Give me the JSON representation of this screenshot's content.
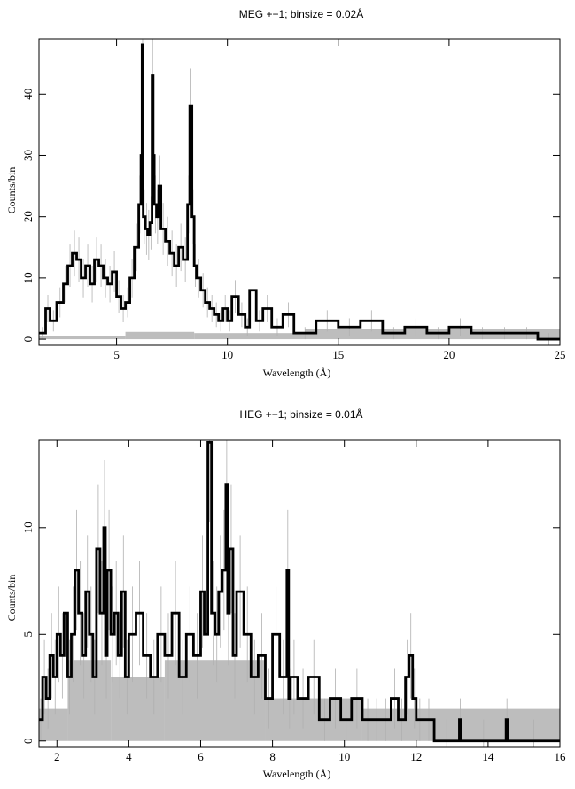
{
  "chart_data": [
    {
      "type": "line",
      "title": "MEG +−1; binsize = 0.02Å",
      "xlabel": "Wavelength (Å)",
      "ylabel": "Counts/bin",
      "xlim": [
        1.5,
        25
      ],
      "ylim": [
        -1,
        49
      ],
      "xticks": [
        5,
        10,
        15,
        20,
        25
      ],
      "yticks": [
        0,
        10,
        20,
        30,
        40
      ],
      "model_band": [
        {
          "x0": 1.5,
          "x1": 5.4,
          "y": 0.5
        },
        {
          "x0": 5.4,
          "x1": 8.5,
          "y": 1.2
        },
        {
          "x0": 8.5,
          "x1": 13.5,
          "y": 1.0
        },
        {
          "x0": 13.5,
          "x1": 25,
          "y": 1.6
        }
      ],
      "series": [
        {
          "style": "histogram",
          "x": [
            1.5,
            1.8,
            2.0,
            2.3,
            2.6,
            2.8,
            3.0,
            3.2,
            3.4,
            3.6,
            3.8,
            4.0,
            4.2,
            4.4,
            4.6,
            4.8,
            5.0,
            5.2,
            5.4,
            5.6,
            5.8,
            6.0,
            6.1,
            6.15,
            6.2,
            6.3,
            6.4,
            6.5,
            6.6,
            6.65,
            6.7,
            6.8,
            6.9,
            7.0,
            7.2,
            7.4,
            7.6,
            7.8,
            8.0,
            8.2,
            8.3,
            8.4,
            8.5,
            8.6,
            8.8,
            9.0,
            9.2,
            9.4,
            9.6,
            9.8,
            10.0,
            10.2,
            10.5,
            10.8,
            11.0,
            11.3,
            11.6,
            12.0,
            12.5,
            13.0,
            14.0,
            15.0,
            16.0,
            17.0,
            18.0,
            19.0,
            20.0,
            21.0,
            22.0,
            23.0,
            24.0,
            25.0
          ],
          "y": [
            1,
            5,
            3,
            6,
            9,
            12,
            14,
            13,
            10,
            12,
            9,
            13,
            12,
            10,
            9,
            11,
            7,
            5,
            6,
            10,
            15,
            22,
            30,
            48,
            20,
            18,
            17,
            19,
            43,
            30,
            22,
            20,
            25,
            18,
            16,
            14,
            12,
            15,
            13,
            22,
            38,
            20,
            12,
            10,
            8,
            6,
            5,
            4,
            3,
            5,
            3,
            7,
            4,
            2,
            8,
            3,
            5,
            2,
            4,
            1,
            3,
            2,
            3,
            1,
            2,
            1,
            2,
            1,
            1,
            1,
            0,
            0
          ]
        }
      ]
    },
    {
      "type": "line",
      "title": "HEG +−1; binsize = 0.01Å",
      "xlabel": "Wavelength (Å)",
      "ylabel": "Counts/bin",
      "xlim": [
        1.5,
        16
      ],
      "ylim": [
        -0.3,
        14.1
      ],
      "xticks": [
        2,
        4,
        6,
        8,
        10,
        12,
        14,
        16
      ],
      "yticks": [
        0,
        5,
        10
      ],
      "model_band": [
        {
          "x0": 1.5,
          "x1": 2.3,
          "y": 1.5
        },
        {
          "x0": 2.3,
          "x1": 3.5,
          "y": 3.8
        },
        {
          "x0": 3.5,
          "x1": 5.0,
          "y": 3.0
        },
        {
          "x0": 5.0,
          "x1": 7.8,
          "y": 3.8
        },
        {
          "x0": 7.8,
          "x1": 10.5,
          "y": 2.0
        },
        {
          "x0": 10.5,
          "x1": 16,
          "y": 1.5
        }
      ],
      "series": [
        {
          "style": "histogram",
          "x": [
            1.5,
            1.6,
            1.7,
            1.8,
            1.9,
            2.0,
            2.1,
            2.2,
            2.3,
            2.4,
            2.5,
            2.6,
            2.7,
            2.8,
            2.9,
            3.0,
            3.1,
            3.2,
            3.3,
            3.35,
            3.4,
            3.5,
            3.6,
            3.7,
            3.8,
            3.9,
            4.0,
            4.2,
            4.4,
            4.6,
            4.8,
            5.0,
            5.2,
            5.4,
            5.6,
            5.8,
            6.0,
            6.1,
            6.2,
            6.3,
            6.4,
            6.5,
            6.6,
            6.7,
            6.75,
            6.8,
            6.9,
            7.0,
            7.2,
            7.4,
            7.6,
            7.8,
            8.0,
            8.2,
            8.4,
            8.45,
            8.5,
            8.7,
            9.0,
            9.3,
            9.6,
            9.9,
            10.2,
            10.5,
            10.8,
            11.0,
            11.3,
            11.5,
            11.7,
            11.8,
            11.9,
            12.0,
            12.2,
            12.5,
            13.2,
            13.25,
            14.5,
            14.55,
            16.0
          ],
          "y": [
            1,
            3,
            2,
            4,
            3,
            5,
            4,
            6,
            3,
            5,
            8,
            6,
            4,
            7,
            5,
            3,
            9,
            6,
            10,
            4,
            8,
            5,
            6,
            4,
            7,
            3,
            5,
            6,
            4,
            3,
            5,
            4,
            6,
            3,
            5,
            4,
            7,
            5,
            14,
            6,
            5,
            7,
            8,
            12,
            6,
            9,
            4,
            7,
            5,
            3,
            4,
            2,
            5,
            3,
            8,
            2,
            3,
            2,
            3,
            1,
            2,
            1,
            2,
            1,
            1,
            1,
            2,
            1,
            3,
            4,
            2,
            1,
            1,
            0,
            1,
            0,
            1,
            0,
            0
          ]
        }
      ]
    }
  ]
}
